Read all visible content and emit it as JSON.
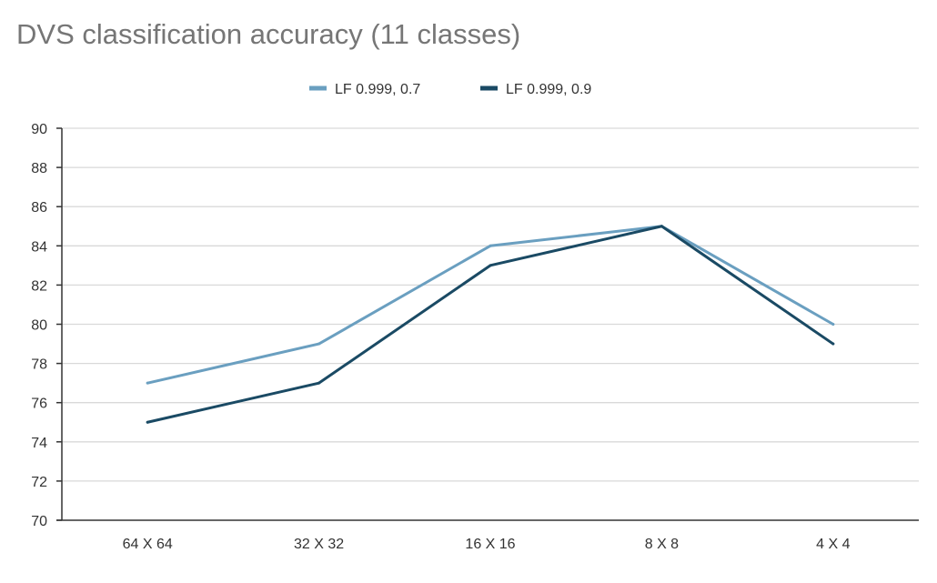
{
  "chart_data": {
    "type": "line",
    "title": "DVS classification accuracy (11 classes)",
    "xlabel": "",
    "ylabel": "",
    "categories": [
      "64 X 64",
      "32 X 32",
      "16 X 16",
      "8 X 8",
      "4 X 4"
    ],
    "series": [
      {
        "name": "LF 0.999, 0.7",
        "color": "#6a9fc0",
        "values": [
          77,
          79,
          84,
          85,
          80
        ]
      },
      {
        "name": "LF 0.999, 0.9",
        "color": "#1a4a64",
        "values": [
          75,
          77,
          83,
          85,
          79
        ]
      }
    ],
    "ylim": [
      70,
      90
    ],
    "yticks": [
      70,
      72,
      74,
      76,
      78,
      80,
      82,
      84,
      86,
      88,
      90
    ],
    "grid": true,
    "legend_position": "top-center"
  }
}
